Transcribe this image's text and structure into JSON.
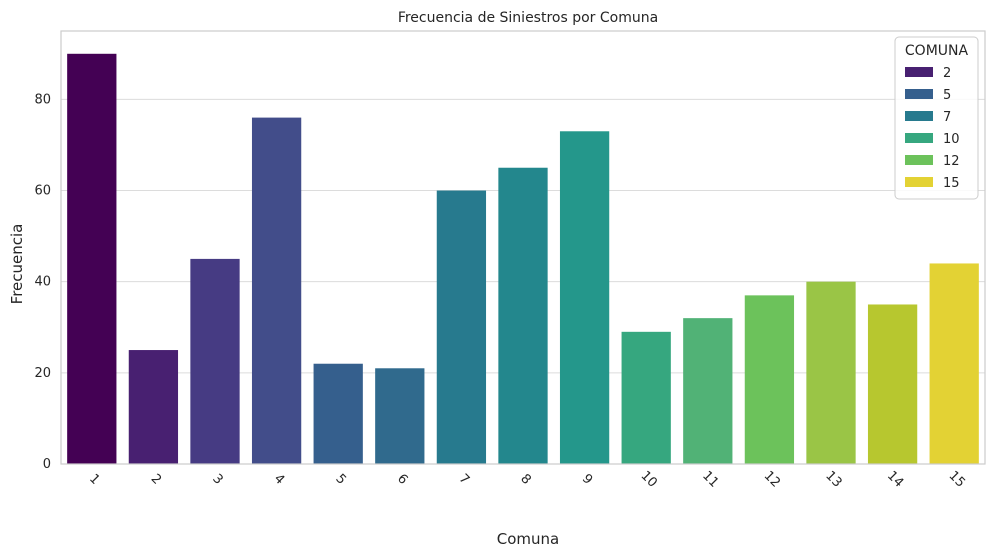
{
  "chart_data": {
    "type": "bar",
    "title": "Frecuencia de Siniestros por Comuna",
    "xlabel": "Comuna",
    "ylabel": "Frecuencia",
    "categories": [
      "1",
      "2",
      "3",
      "4",
      "5",
      "6",
      "7",
      "8",
      "9",
      "10",
      "11",
      "12",
      "13",
      "14",
      "15"
    ],
    "values": [
      90,
      25,
      45,
      76,
      22,
      21,
      60,
      65,
      73,
      29,
      32,
      37,
      40,
      35,
      44
    ],
    "colors": [
      "#440154",
      "#482071",
      "#463b83",
      "#424d8a",
      "#355f8d",
      "#306a8d",
      "#277a8e",
      "#23878d",
      "#24978b",
      "#36a77f",
      "#51b276",
      "#6cc25b",
      "#9ac546",
      "#b7c72f",
      "#e3d234"
    ],
    "ylim": [
      0,
      95
    ],
    "yticks": [
      0,
      20,
      40,
      60,
      80
    ],
    "grid": true,
    "legend": {
      "title": "COMUNA",
      "position": "top-right",
      "entries": [
        {
          "label": "2",
          "color": "#482071"
        },
        {
          "label": "5",
          "color": "#355f8d"
        },
        {
          "label": "7",
          "color": "#277a8e"
        },
        {
          "label": "10",
          "color": "#36a77f"
        },
        {
          "label": "12",
          "color": "#6cc25b"
        },
        {
          "label": "15",
          "color": "#e3d234"
        }
      ]
    }
  }
}
